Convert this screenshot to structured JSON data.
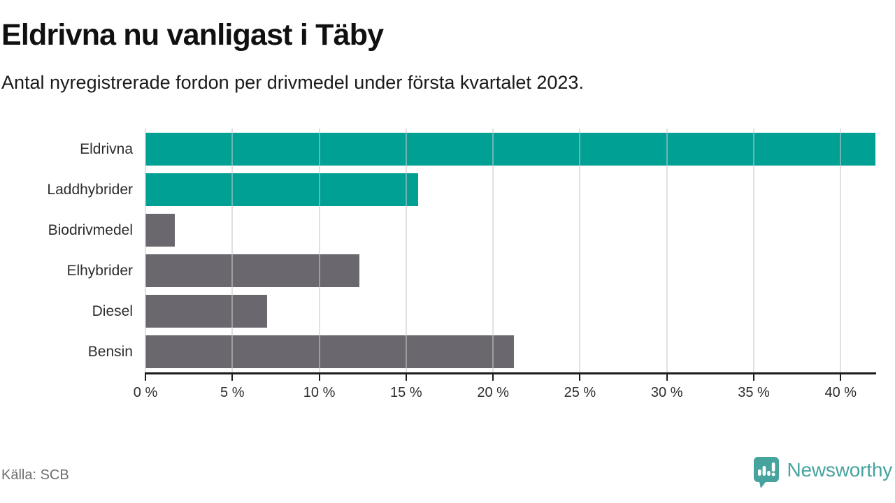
{
  "title": "Eldrivna nu vanligast i Täby",
  "subtitle": "Antal nyregistrerade fordon per drivmedel under första kvartalet 2023.",
  "source": "Källa: SCB",
  "brand": {
    "name": "Newsworthy",
    "color": "#46a39e",
    "logo_icon": "speech-bubble-bar-chart-icon"
  },
  "colors": {
    "highlight_bar": "#00a094",
    "default_bar": "#6a686e",
    "gridline": "#d9d9d9",
    "axis": "#1c1c1c"
  },
  "chart_data": {
    "type": "bar",
    "orientation": "horizontal",
    "title": "Eldrivna nu vanligast i Täby",
    "subtitle": "Antal nyregistrerade fordon per drivmedel under första kvartalet 2023.",
    "categories": [
      "Eldrivna",
      "Laddhybrider",
      "Biodrivmedel",
      "Elhybrider",
      "Diesel",
      "Bensin"
    ],
    "values": [
      42.0,
      15.7,
      1.7,
      12.3,
      7.0,
      21.2
    ],
    "unit": "%",
    "bar_colors": [
      "#00a094",
      "#00a094",
      "#6a686e",
      "#6a686e",
      "#6a686e",
      "#6a686e"
    ],
    "xlim": [
      0,
      42
    ],
    "x_ticks": [
      0,
      5,
      10,
      15,
      20,
      25,
      30,
      35,
      40
    ],
    "x_tick_labels": [
      "0 %",
      "5 %",
      "10 %",
      "15 %",
      "20 %",
      "25 %",
      "30 %",
      "35 %",
      "40 %"
    ],
    "grid": true,
    "legend": false,
    "xlabel": "",
    "ylabel": ""
  }
}
